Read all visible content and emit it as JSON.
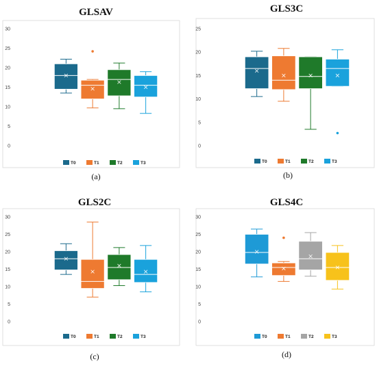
{
  "chart_data": [
    {
      "type": "box",
      "title": "GLSAV",
      "caption": "(a)",
      "ylim": [
        0,
        30
      ],
      "yticks": [
        0,
        5,
        10,
        15,
        20,
        25,
        30
      ],
      "legend": "bottom",
      "categories": [
        "T0",
        "T1",
        "T2",
        "T3"
      ],
      "colors": [
        "#1b6a8c",
        "#ee7a31",
        "#1f7a2a",
        "#1aa2dc"
      ],
      "boxes": [
        {
          "name": "T0",
          "min": 13.5,
          "q1": 14.5,
          "median": 18.0,
          "q3": 21.0,
          "max": 22.2,
          "mean": 18.0,
          "outliers": []
        },
        {
          "name": "T1",
          "min": 9.7,
          "q1": 12.0,
          "median": 15.5,
          "q3": 16.8,
          "max": 17.0,
          "mean": 14.6,
          "outliers": [
            24.2
          ]
        },
        {
          "name": "T2",
          "min": 9.5,
          "q1": 12.8,
          "median": 17.0,
          "q3": 19.5,
          "max": 21.2,
          "mean": 16.3,
          "outliers": []
        },
        {
          "name": "T3",
          "min": 8.3,
          "q1": 12.5,
          "median": 15.5,
          "q3": 18.0,
          "max": 19.0,
          "mean": 15.0,
          "outliers": []
        }
      ]
    },
    {
      "type": "box",
      "title": "GLS3C",
      "caption": "(b)",
      "ylim": [
        0,
        25
      ],
      "yticks": [
        0,
        5,
        10,
        15,
        20,
        25
      ],
      "legend": "bottom",
      "categories": [
        "T0",
        "T1",
        "T2",
        "T3"
      ],
      "colors": [
        "#1b6a8c",
        "#ee7a31",
        "#1f7a2a",
        "#1aa2dc"
      ],
      "boxes": [
        {
          "name": "T0",
          "min": 10.5,
          "q1": 12.2,
          "median": 16.5,
          "q3": 19.0,
          "max": 20.2,
          "mean": 16.0,
          "outliers": []
        },
        {
          "name": "T1",
          "min": 9.5,
          "q1": 12.0,
          "median": 14.0,
          "q3": 19.2,
          "max": 20.8,
          "mean": 15.0,
          "outliers": []
        },
        {
          "name": "T2",
          "min": 3.5,
          "q1": 12.2,
          "median": 14.8,
          "q3": 19.0,
          "max": 19.0,
          "mean": 15.0,
          "outliers": []
        },
        {
          "name": "T3",
          "min": 12.7,
          "q1": 12.7,
          "median": 16.5,
          "q3": 18.5,
          "max": 20.5,
          "mean": 15.0,
          "outliers": [
            2.7
          ]
        }
      ]
    },
    {
      "type": "box",
      "title": "GLS2C",
      "caption": "(c)",
      "ylim": [
        0,
        30
      ],
      "yticks": [
        0,
        5,
        10,
        15,
        20,
        25,
        30
      ],
      "legend": "bottom",
      "categories": [
        "T0",
        "T1",
        "T2",
        "T3"
      ],
      "colors": [
        "#1b6a8c",
        "#ee7a31",
        "#1f7a2a",
        "#1aa2dc"
      ],
      "boxes": [
        {
          "name": "T0",
          "min": 13.5,
          "q1": 14.8,
          "median": 18.0,
          "q3": 20.3,
          "max": 22.3,
          "mean": 18.0,
          "outliers": []
        },
        {
          "name": "T1",
          "min": 7.0,
          "q1": 9.5,
          "median": 11.5,
          "q3": 17.8,
          "max": 28.5,
          "mean": 14.3,
          "outliers": []
        },
        {
          "name": "T2",
          "min": 10.3,
          "q1": 12.0,
          "median": 15.5,
          "q3": 19.2,
          "max": 21.2,
          "mean": 16.0,
          "outliers": []
        },
        {
          "name": "T3",
          "min": 8.5,
          "q1": 11.2,
          "median": 13.5,
          "q3": 17.8,
          "max": 21.8,
          "mean": 14.3,
          "outliers": []
        }
      ]
    },
    {
      "type": "box",
      "title": "GLS4C",
      "caption": "(d)",
      "ylim": [
        0,
        30
      ],
      "yticks": [
        0,
        5,
        10,
        15,
        20,
        25,
        30
      ],
      "legend": "bottom",
      "categories": [
        "T0",
        "T1",
        "T2",
        "T3"
      ],
      "colors": [
        "#1e9ad6",
        "#ee7a31",
        "#a5a5a5",
        "#f7c21b"
      ],
      "boxes": [
        {
          "name": "T0",
          "min": 12.8,
          "q1": 16.5,
          "median": 19.8,
          "q3": 25.0,
          "max": 26.5,
          "mean": 20.0,
          "outliers": []
        },
        {
          "name": "T1",
          "min": 11.5,
          "q1": 13.2,
          "median": 15.5,
          "q3": 16.8,
          "max": 17.2,
          "mean": 15.2,
          "outliers": [
            24.0
          ]
        },
        {
          "name": "T2",
          "min": 13.0,
          "q1": 14.8,
          "median": 18.0,
          "q3": 23.0,
          "max": 25.5,
          "mean": 18.7,
          "outliers": []
        },
        {
          "name": "T3",
          "min": 9.3,
          "q1": 11.8,
          "median": 15.5,
          "q3": 19.8,
          "max": 21.8,
          "mean": 15.5,
          "outliers": []
        }
      ]
    }
  ]
}
